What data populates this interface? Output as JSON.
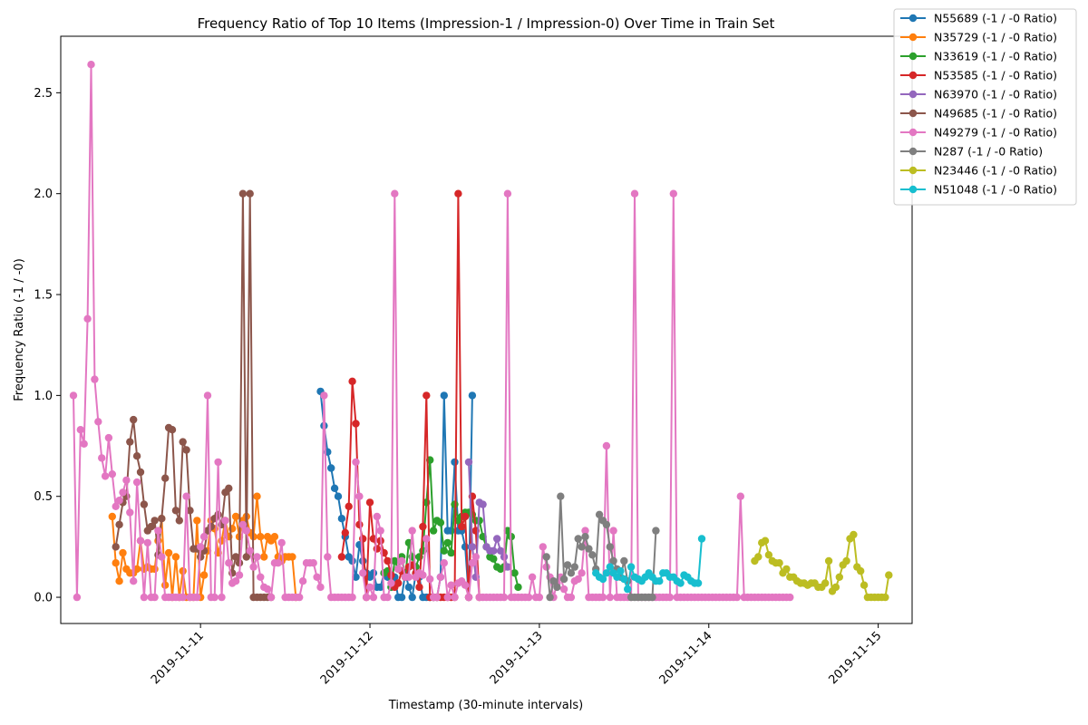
{
  "chart_data": {
    "type": "line",
    "title": "Frequency Ratio of Top 10 Items (Impression-1 / Impression-0) Over Time in Train Set",
    "xlabel": "Timestamp (30-minute intervals)",
    "ylabel": "Frequency Ratio (-1 / -0)",
    "xlim": [
      "2019-11-10 04:12",
      "2019-11-15 04:48"
    ],
    "ylim": [
      -0.13,
      2.78
    ],
    "x_ticks": [
      "2019-11-11",
      "2019-11-12",
      "2019-11-13",
      "2019-11-14",
      "2019-11-15"
    ],
    "y_ticks": [
      "0.0",
      "0.5",
      "1.0",
      "1.5",
      "2.0",
      "2.5"
    ],
    "grid": false,
    "legend_position": "upper-right, outside plot",
    "start_time": "2019-11-10 06:00",
    "interval": "30-minute",
    "series": [
      {
        "name": "N55689 (-1 / -0 Ratio)",
        "color": "#1f77b4",
        "start_slot": 70,
        "values": [
          1.02,
          0.85,
          0.72,
          0.64,
          0.54,
          0.5,
          0.39,
          0.3,
          0.2,
          0.18,
          0.1,
          0.26,
          0.18,
          0.12,
          0.1,
          0.12,
          0.05,
          0.05,
          0.12,
          0.1,
          0.05,
          0.1,
          0.0,
          0.0,
          0.12,
          0.05,
          0.0,
          0.12,
          0.1,
          0.0,
          0.0,
          0.0,
          0.0,
          0.0,
          0.1,
          1.0,
          0.33,
          0.33,
          0.67,
          0.33,
          0.33,
          0.25,
          0.0,
          1.0
        ]
      },
      {
        "name": "N35729 (-1 / -0 Ratio)",
        "color": "#ff7f0e",
        "start_slot": 11,
        "values": [
          0.4,
          0.17,
          0.08,
          0.22,
          0.14,
          0.12,
          0.12,
          0.14,
          0.28,
          0.14,
          0.15,
          0.14,
          0.14,
          0.28,
          0.39,
          0.06,
          0.22,
          0.0,
          0.2,
          0.0,
          0.13,
          0.0,
          0.0,
          0.0,
          0.38,
          0.0,
          0.11,
          0.23,
          0.38,
          0.34,
          0.22,
          0.28,
          0.38,
          0.3,
          0.34,
          0.4,
          0.3,
          0.38,
          0.4,
          0.32,
          0.3,
          0.5,
          0.3,
          0.2,
          0.3,
          0.28,
          0.3,
          0.2,
          0.18,
          0.2,
          0.2,
          0.2,
          0.0
        ]
      },
      {
        "name": "N33619 (-1 / -0 Ratio)",
        "color": "#2ca02c",
        "start_slot": 88,
        "values": [
          0.12,
          0.13,
          0.05,
          0.18,
          0.14,
          0.2,
          0.1,
          0.27,
          0.2,
          0.15,
          0.2,
          0.23,
          0.47,
          0.68,
          0.33,
          0.38,
          0.37,
          0.23,
          0.27,
          0.22,
          0.46,
          0.38,
          0.4,
          0.42,
          0.42,
          0.41,
          0.38,
          0.38,
          0.3,
          0.25,
          0.2,
          0.19,
          0.15,
          0.14,
          0.15,
          0.33,
          0.3,
          0.12,
          0.05
        ]
      },
      {
        "name": "N53585 (-1 / -0 Ratio)",
        "color": "#d62728",
        "start_slot": 76,
        "values": [
          0.2,
          0.32,
          0.45,
          1.07,
          0.86,
          0.36,
          0.29,
          0.0,
          0.47,
          0.29,
          0.24,
          0.28,
          0.22,
          0.18,
          0.11,
          0.05,
          0.07,
          0.13,
          0.1,
          0.15,
          0.16,
          0.12,
          0.05,
          0.35,
          1.0,
          0.0,
          0.0,
          0.0,
          0.0,
          0.0,
          0.0,
          0.0,
          0.0,
          2.0,
          0.35,
          0.4,
          0.0,
          0.5,
          0.33,
          0.0
        ]
      },
      {
        "name": "N63970 (-1 / -0 Ratio)",
        "color": "#9467bd",
        "start_slot": 112,
        "values": [
          0.67,
          0.25,
          0.1,
          0.47,
          0.46,
          0.25,
          0.23,
          0.23,
          0.29,
          0.23,
          0.2,
          0.15
        ]
      },
      {
        "name": "N49685 (-1 / -0 Ratio)",
        "color": "#8c564b",
        "start_slot": 12,
        "values": [
          0.25,
          0.36,
          0.47,
          0.5,
          0.77,
          0.88,
          0.7,
          0.62,
          0.46,
          0.33,
          0.35,
          0.38,
          0.21,
          0.39,
          0.59,
          0.84,
          0.83,
          0.43,
          0.38,
          0.77,
          0.73,
          0.43,
          0.24,
          0.24,
          0.2,
          0.23,
          0.33,
          0.35,
          0.39,
          0.41,
          0.36,
          0.52,
          0.54,
          0.12,
          0.2,
          0.17,
          2.0,
          0.2,
          2.0,
          0.0,
          0.0,
          0.0,
          0.0,
          0.0,
          0.0
        ]
      },
      {
        "name": "N49279 (-1 / -0 Ratio)",
        "color": "#e377c2",
        "start_slot": 0,
        "values": [
          1.0,
          0.0,
          0.83,
          0.76,
          1.38,
          2.64,
          1.08,
          0.87,
          0.69,
          0.6,
          0.79,
          0.61,
          0.45,
          0.48,
          0.52,
          0.58,
          0.42,
          0.08,
          0.57,
          0.28,
          0.0,
          0.27,
          0.0,
          0.0,
          0.33,
          0.2,
          0.0,
          0.0,
          0.0,
          0.0,
          0.0,
          0.0,
          0.5,
          0.0,
          0.0,
          0.0,
          0.25,
          0.3,
          1.0,
          0.0,
          0.0,
          0.67,
          0.0,
          0.38,
          0.17,
          0.07,
          0.08,
          0.11,
          0.36,
          0.33,
          0.23,
          0.15,
          0.2,
          0.1,
          0.05,
          0.04,
          0.0,
          0.17,
          0.17,
          0.27,
          0.0,
          0.0,
          0.0,
          0.0,
          0.0,
          0.08,
          0.17,
          0.17,
          0.17,
          0.1,
          0.05,
          1.0,
          0.2,
          0.0,
          0.0,
          0.0,
          0.0,
          0.0,
          0.0,
          0.0,
          0.67,
          0.5,
          0.12,
          0.0,
          0.05,
          0.0,
          0.4,
          0.33,
          0.0,
          0.0,
          0.07,
          2.0,
          0.14,
          0.18,
          0.1,
          0.1,
          0.33,
          0.1,
          0.12,
          0.11,
          0.29,
          0.09,
          0.0,
          0.0,
          0.1,
          0.17,
          0.0,
          0.06,
          0.0,
          0.07,
          0.08,
          0.06,
          0.0,
          0.17,
          0.2,
          0.0,
          0.0,
          0.0,
          0.0,
          0.0,
          0.0,
          0.0,
          0.0,
          2.0,
          0.0,
          0.0,
          0.0,
          0.0,
          0.0,
          0.0,
          0.1,
          0.0,
          0.0,
          0.25,
          0.15,
          0.1,
          0.0,
          0.07,
          0.1,
          0.04,
          0.0,
          0.0,
          0.08,
          0.09,
          0.12,
          0.33,
          0.0,
          0.0,
          0.0,
          0.0,
          0.0,
          0.75,
          0.0,
          0.33,
          0.0,
          0.0,
          0.0,
          0.0,
          0.0,
          2.0,
          0.0,
          0.0,
          0.0,
          0.0,
          0.0,
          0.0,
          0.0,
          0.0,
          0.0,
          0.0,
          2.0,
          0.0,
          0.0,
          0.0,
          0.0,
          0.0,
          0.0,
          0.0,
          0.0,
          0.0,
          0.0,
          0.0,
          0.0,
          0.0,
          0.0,
          0.0,
          0.0,
          0.0,
          0.0,
          0.5,
          0.0,
          0.0,
          0.0,
          0.0,
          0.0,
          0.0,
          0.0,
          0.0,
          0.0,
          0.0,
          0.0,
          0.0,
          0.0,
          0.0
        ]
      },
      {
        "name": "N287 (-1 / -0 Ratio)",
        "color": "#7f7f7f",
        "start_slot": 134,
        "values": [
          0.2,
          0.0,
          0.08,
          0.05,
          0.5,
          0.09,
          0.16,
          0.12,
          0.15,
          0.29,
          0.25,
          0.3,
          0.24,
          0.21,
          0.14,
          0.41,
          0.38,
          0.36,
          0.25,
          0.18,
          0.14,
          0.1,
          0.18,
          0.08,
          0.0,
          0.0,
          0.0,
          0.0,
          0.0,
          0.0,
          0.0,
          0.33
        ]
      },
      {
        "name": "N23446 (-1 / -0 Ratio)",
        "color": "#bcbd22",
        "start_slot": 193,
        "values": [
          0.18,
          0.2,
          0.27,
          0.28,
          0.21,
          0.18,
          0.17,
          0.17,
          0.12,
          0.14,
          0.1,
          0.1,
          0.08,
          0.07,
          0.07,
          0.06,
          0.07,
          0.07,
          0.05,
          0.05,
          0.07,
          0.18,
          0.03,
          0.05,
          0.1,
          0.16,
          0.18,
          0.29,
          0.31,
          0.15,
          0.13,
          0.06,
          0.0,
          0.0,
          0.0,
          0.0,
          0.0,
          0.0,
          0.11
        ]
      },
      {
        "name": "N51048 (-1 / -0 Ratio)",
        "color": "#17becf",
        "start_slot": 148,
        "values": [
          0.12,
          0.1,
          0.09,
          0.12,
          0.15,
          0.12,
          0.1,
          0.13,
          0.09,
          0.04,
          0.15,
          0.1,
          0.09,
          0.08,
          0.1,
          0.12,
          0.1,
          0.08,
          0.08,
          0.12,
          0.12,
          0.1,
          0.1,
          0.08,
          0.07,
          0.11,
          0.1,
          0.08,
          0.07,
          0.07,
          0.29
        ]
      }
    ]
  }
}
